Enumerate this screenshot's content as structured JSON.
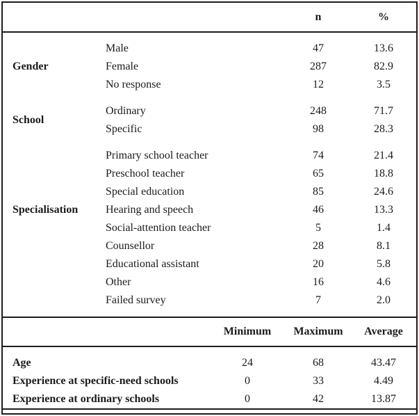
{
  "frequency_table": {
    "col_headers": {
      "n": "n",
      "pct": "%"
    },
    "groups": [
      {
        "label": "Gender",
        "rows": [
          {
            "category": "Male",
            "n": "47",
            "pct": "13.6"
          },
          {
            "category": "Female",
            "n": "287",
            "pct": "82.9"
          },
          {
            "category": "No response",
            "n": "12",
            "pct": "3.5"
          }
        ]
      },
      {
        "label": "School",
        "rows": [
          {
            "category": "Ordinary",
            "n": "248",
            "pct": "71.7"
          },
          {
            "category": "Specific",
            "n": "98",
            "pct": "28.3"
          }
        ]
      },
      {
        "label": "Specialisation",
        "rows": [
          {
            "category": "Primary school teacher",
            "n": "74",
            "pct": "21.4"
          },
          {
            "category": "Preschool teacher",
            "n": "65",
            "pct": "18.8"
          },
          {
            "category": "Special education",
            "n": "85",
            "pct": "24.6"
          },
          {
            "category": "Hearing and speech",
            "n": "46",
            "pct": "13.3"
          },
          {
            "category": "Social-attention teacher",
            "n": "5",
            "pct": "1.4"
          },
          {
            "category": "Counsellor",
            "n": "28",
            "pct": "8.1"
          },
          {
            "category": "Educational assistant",
            "n": "20",
            "pct": "5.8"
          },
          {
            "category": "Other",
            "n": "16",
            "pct": "4.6"
          },
          {
            "category": "Failed survey",
            "n": "7",
            "pct": "2.0"
          }
        ]
      }
    ]
  },
  "range_table": {
    "col_headers": {
      "min": "Minimum",
      "max": "Maximum",
      "avg": "Average"
    },
    "rows": [
      {
        "label": "Age",
        "min": "24",
        "max": "68",
        "avg": "43.47"
      },
      {
        "label": "Experience at specific-need schools",
        "min": "0",
        "max": "33",
        "avg": "4.49"
      },
      {
        "label": "Experience at ordinary schools",
        "min": "0",
        "max": "42",
        "avg": "13.87"
      }
    ]
  }
}
